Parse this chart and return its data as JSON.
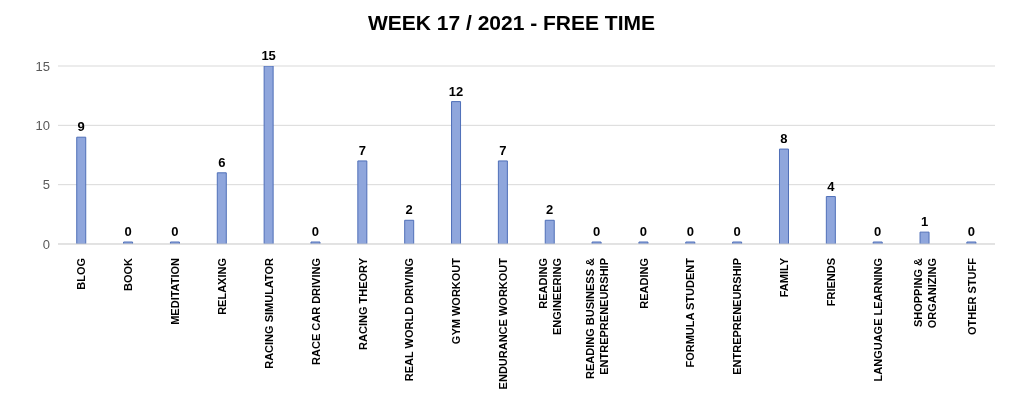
{
  "chart_data": {
    "type": "bar",
    "title": "WEEK 17 / 2021 - FREE TIME",
    "categories": [
      "BLOG",
      "BOOK",
      "MEDITATION",
      "RELAXING",
      "RACING SIMULATOR",
      "RACE CAR DRIVING",
      "RACING THEORY",
      "REAL WORLD DRIVING",
      "GYM WORKOUT",
      "ENDURANCE WORKOUT",
      "READING ENGINEERING",
      "READING BUSINESS & ENTREPRENEURSHIP",
      "READING",
      "FORMULA STUDENT",
      "ENTREPRENEURSHIP",
      "FAMILY",
      "FRIENDS",
      "LANGUAGE LEARNING",
      "SHOPPING & ORGANIZING",
      "OTHER STUFF"
    ],
    "values": [
      9,
      0,
      0,
      6,
      15,
      0,
      7,
      2,
      12,
      7,
      2,
      0,
      0,
      0,
      0,
      8,
      4,
      0,
      1,
      0
    ],
    "color": "#8fa6dc",
    "ylim": [
      0,
      15
    ],
    "yticks": [
      0,
      5,
      10,
      15
    ],
    "grid": "y",
    "data_labels": true
  }
}
